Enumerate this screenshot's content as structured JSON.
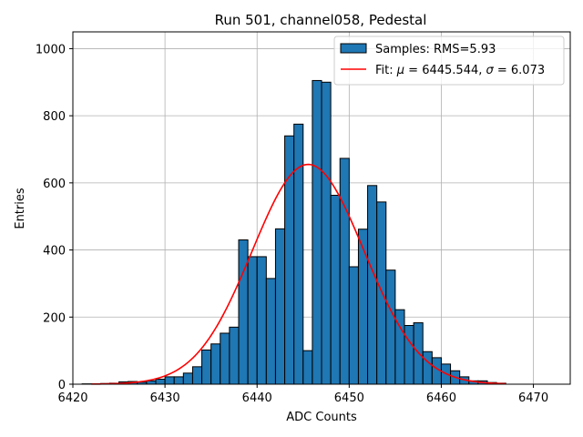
{
  "chart_data": {
    "type": "bar",
    "title": "Run 501, channel058, Pedestal",
    "xlabel": "ADC Counts",
    "ylabel": "Entries",
    "xlim": [
      6420,
      6474
    ],
    "ylim": [
      0,
      1050
    ],
    "xticks": [
      6420,
      6430,
      6440,
      6450,
      6460,
      6470
    ],
    "yticks": [
      0,
      200,
      400,
      600,
      800,
      1000
    ],
    "grid": true,
    "legend_position": "top-right",
    "histogram": {
      "name": "Samples: RMS=5.93",
      "color": "#1f77b4",
      "bin_edges": [
        6421,
        6422,
        6423,
        6424,
        6425,
        6426,
        6427,
        6428,
        6429,
        6430,
        6431,
        6432,
        6433,
        6434,
        6435,
        6436,
        6437,
        6438,
        6439,
        6440,
        6441,
        6442,
        6443,
        6444,
        6445,
        6446,
        6447,
        6448,
        6449,
        6450,
        6451,
        6452,
        6453,
        6454,
        6455,
        6456,
        6457,
        6458,
        6459,
        6460,
        6461,
        6462,
        6463,
        6464,
        6465,
        6466,
        6467
      ],
      "counts": [
        1,
        1,
        2,
        3,
        7,
        8,
        6,
        10,
        15,
        22,
        22,
        33,
        52,
        102,
        120,
        152,
        170,
        430,
        380,
        380,
        315,
        463,
        740,
        775,
        100,
        905,
        900,
        563,
        673,
        350,
        462,
        592,
        543,
        340,
        222,
        175,
        183,
        97,
        79,
        60,
        40,
        22,
        10,
        10,
        5,
        3
      ]
    },
    "fit": {
      "name_prefix": "Fit: ",
      "mu_symbol": "μ",
      "mu_text": " = 6445.544, ",
      "sigma_symbol": "σ",
      "sigma_text": " = 6.073",
      "mu": 6445.544,
      "sigma": 6.073,
      "amplitude": 655,
      "x_range": [
        6422,
        6467
      ],
      "color": "#ff0000"
    }
  }
}
